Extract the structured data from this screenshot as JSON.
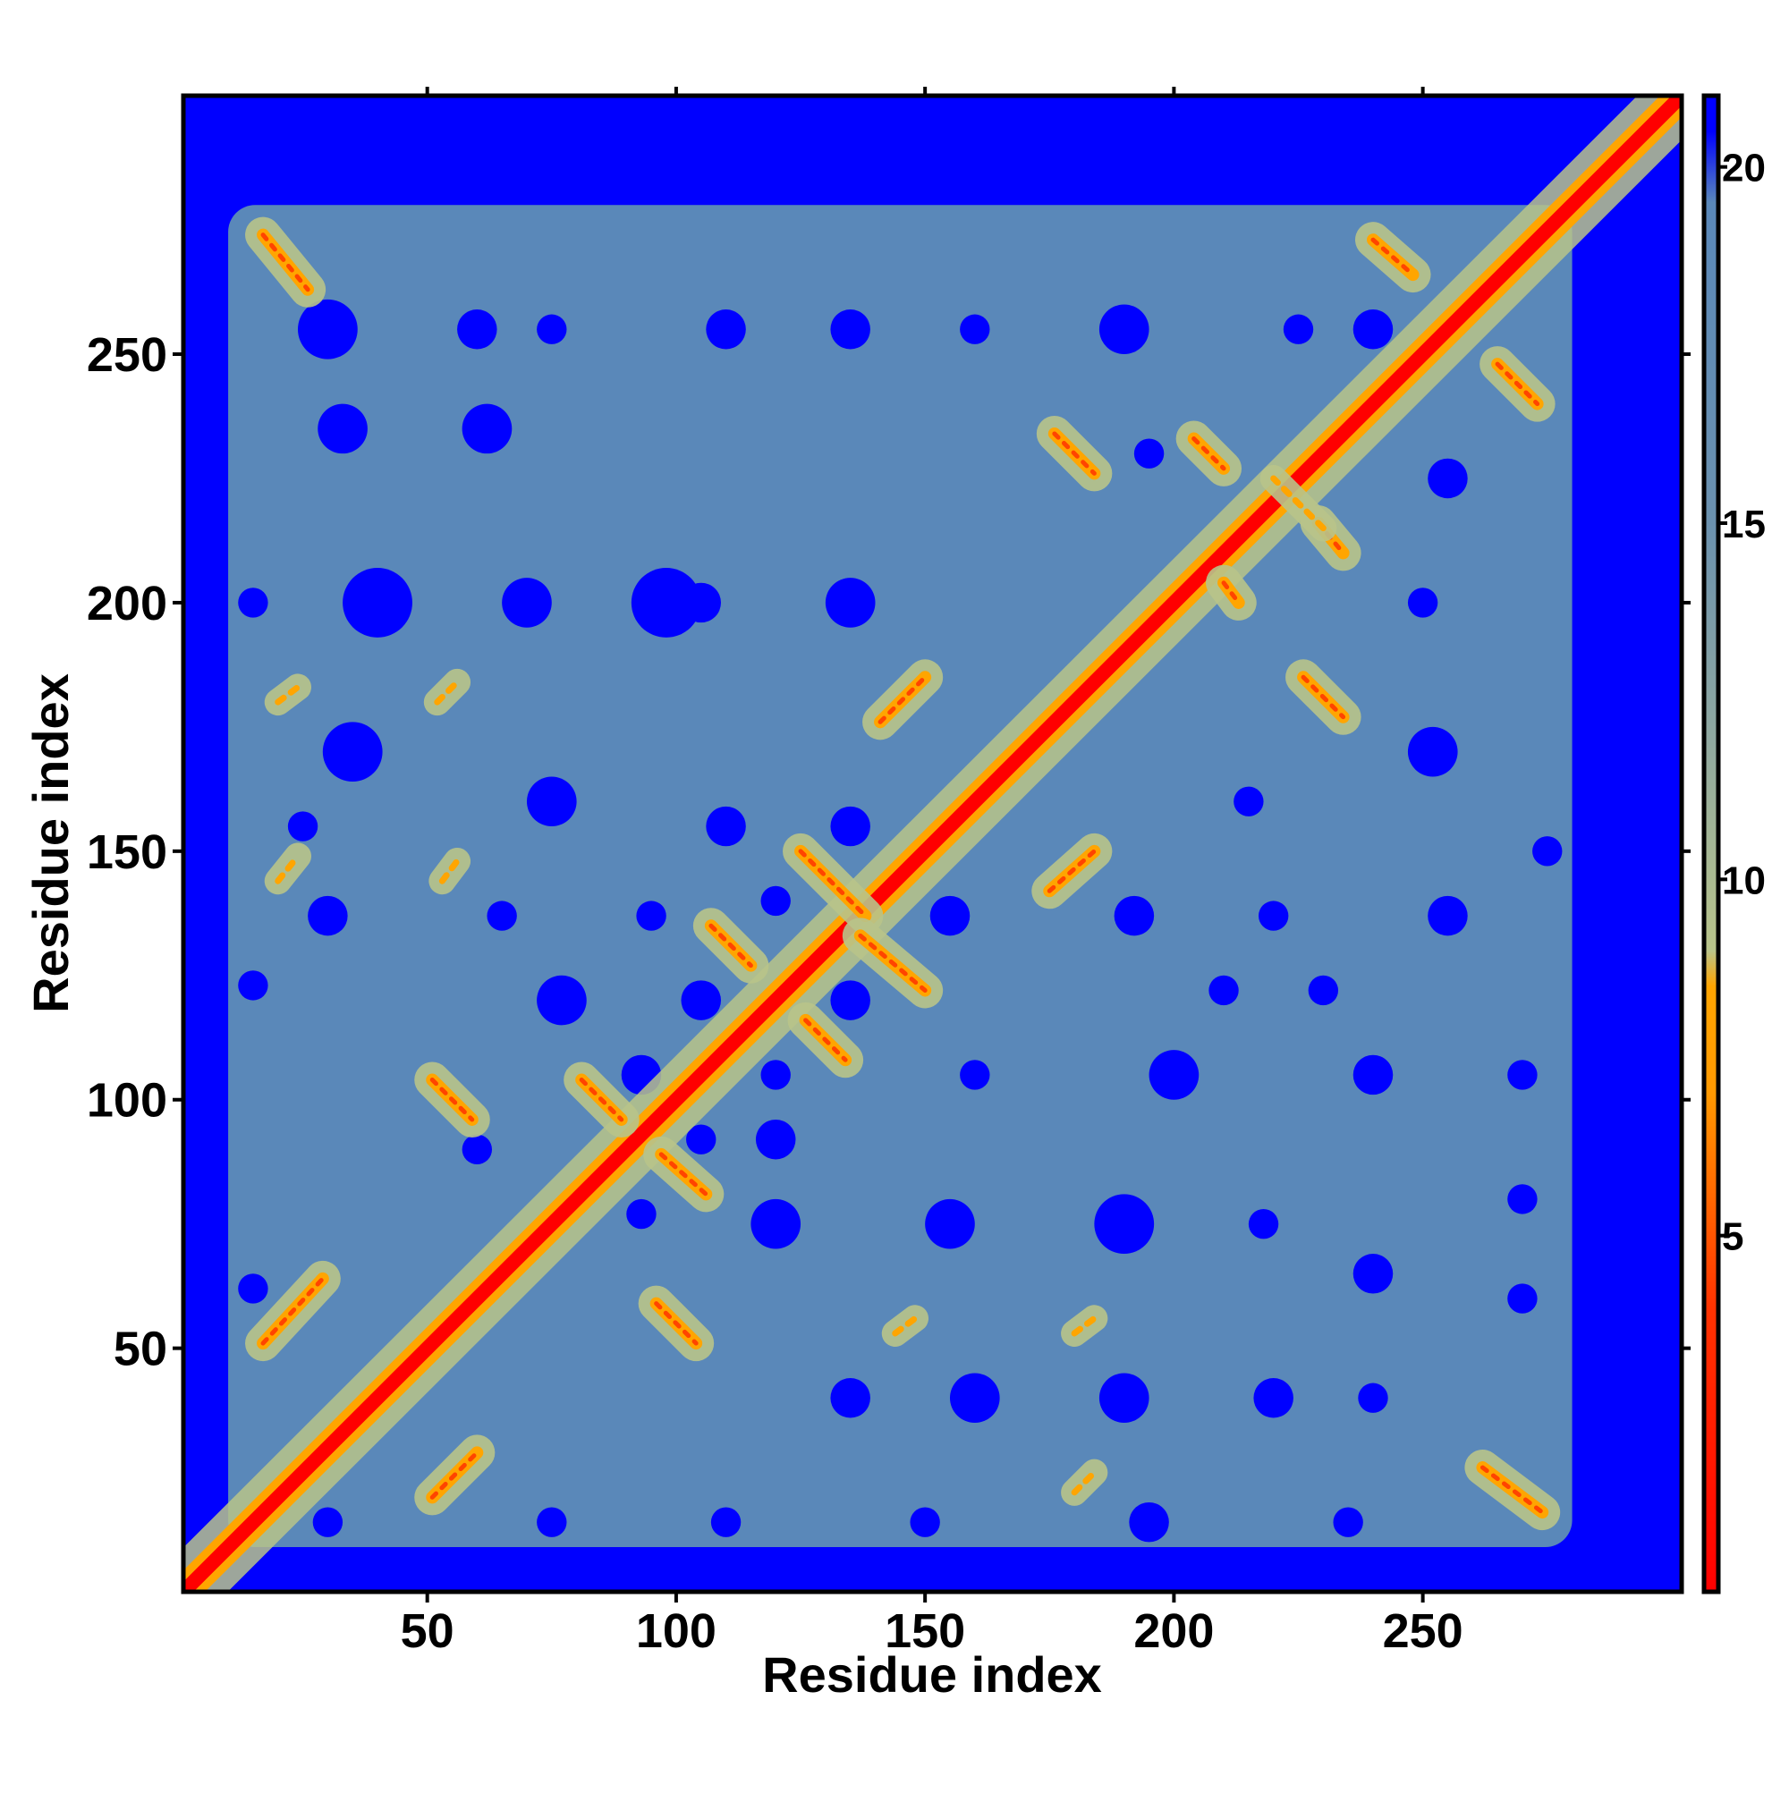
{
  "chart_data": {
    "type": "heatmap",
    "title": "",
    "xlabel": "Residue index",
    "ylabel": "Residue index",
    "xlim": [
      1,
      302
    ],
    "ylim": [
      1,
      302
    ],
    "x_ticks": [
      50,
      100,
      150,
      200,
      250
    ],
    "y_ticks": [
      50,
      100,
      150,
      200,
      250
    ],
    "colorbar": {
      "ticks": [
        5,
        10,
        15,
        20
      ],
      "range": [
        0,
        21
      ],
      "threshold_above": 8.5,
      "stops": [
        {
          "value": 0,
          "color": "#ff0000"
        },
        {
          "value": 4,
          "color": "#ff3300"
        },
        {
          "value": 7,
          "color": "#ff9900"
        },
        {
          "value": 8.5,
          "color": "#ffa500"
        },
        {
          "value": 9,
          "color": "#b9c48a"
        },
        {
          "value": 12,
          "color": "#8fa8a0"
        },
        {
          "value": 15,
          "color": "#6b91ae"
        },
        {
          "value": 19.5,
          "color": "#5a88b9"
        },
        {
          "value": 20.5,
          "color": "#0000ff"
        }
      ]
    },
    "colors": {
      "far": "#0000ff",
      "mid": "#5a88b9",
      "near": "#b9c48a",
      "contact": "#ffa500",
      "diagonal": "#ff0000"
    },
    "protein_extent": [
      10,
      280
    ],
    "diagonal": {
      "from": 1,
      "to": 302
    },
    "contact_segments": [
      {
        "x1": 17,
        "y1": 51,
        "x2": 29,
        "y2": 64,
        "kind": "parallel"
      },
      {
        "x1": 51,
        "y1": 20,
        "x2": 60,
        "y2": 29,
        "kind": "parallel"
      },
      {
        "x1": 51,
        "y1": 104,
        "x2": 59,
        "y2": 96,
        "kind": "antiparallel"
      },
      {
        "x1": 81,
        "y1": 104,
        "x2": 89,
        "y2": 96,
        "kind": "antiparallel"
      },
      {
        "x1": 96,
        "y1": 59,
        "x2": 104,
        "y2": 51,
        "kind": "antiparallel"
      },
      {
        "x1": 97,
        "y1": 89,
        "x2": 106,
        "y2": 81,
        "kind": "antiparallel"
      },
      {
        "x1": 107,
        "y1": 135,
        "x2": 115,
        "y2": 127,
        "kind": "antiparallel"
      },
      {
        "x1": 125,
        "y1": 150,
        "x2": 138,
        "y2": 137,
        "kind": "antiparallel"
      },
      {
        "x1": 126,
        "y1": 116,
        "x2": 134,
        "y2": 108,
        "kind": "antiparallel"
      },
      {
        "x1": 137,
        "y1": 133,
        "x2": 150,
        "y2": 122,
        "kind": "antiparallel"
      },
      {
        "x1": 141,
        "y1": 176,
        "x2": 150,
        "y2": 185,
        "kind": "parallel"
      },
      {
        "x1": 175,
        "y1": 142,
        "x2": 184,
        "y2": 150,
        "kind": "parallel"
      },
      {
        "x1": 176,
        "y1": 234,
        "x2": 184,
        "y2": 226,
        "kind": "antiparallel"
      },
      {
        "x1": 226,
        "y1": 185,
        "x2": 234,
        "y2": 177,
        "kind": "antiparallel"
      },
      {
        "x1": 229,
        "y1": 216,
        "x2": 234,
        "y2": 210,
        "kind": "antiparallel"
      },
      {
        "x1": 240,
        "y1": 273,
        "x2": 248,
        "y2": 266,
        "kind": "antiparallel"
      },
      {
        "x1": 265,
        "y1": 248,
        "x2": 273,
        "y2": 240,
        "kind": "antiparallel"
      },
      {
        "x1": 262,
        "y1": 26,
        "x2": 274,
        "y2": 17,
        "kind": "antiparallel"
      },
      {
        "x1": 17,
        "y1": 274,
        "x2": 26,
        "y2": 263,
        "kind": "antiparallel"
      },
      {
        "x1": 204,
        "y1": 233,
        "x2": 210,
        "y2": 227,
        "kind": "antiparallel"
      },
      {
        "x1": 210,
        "y1": 204,
        "x2": 213,
        "y2": 200,
        "kind": "antiparallel"
      },
      {
        "x1": 20,
        "y1": 180,
        "x2": 24,
        "y2": 183,
        "kind": "weak"
      },
      {
        "x1": 52,
        "y1": 180,
        "x2": 56,
        "y2": 184,
        "kind": "weak"
      },
      {
        "x1": 180,
        "y1": 53,
        "x2": 184,
        "y2": 56,
        "kind": "weak"
      },
      {
        "x1": 180,
        "y1": 21,
        "x2": 184,
        "y2": 25,
        "kind": "weak"
      },
      {
        "x1": 144,
        "y1": 53,
        "x2": 148,
        "y2": 56,
        "kind": "weak"
      },
      {
        "x1": 53,
        "y1": 144,
        "x2": 56,
        "y2": 148,
        "kind": "weak"
      },
      {
        "x1": 20,
        "y1": 144,
        "x2": 24,
        "y2": 149,
        "kind": "weak"
      },
      {
        "x1": 230,
        "y1": 215,
        "x2": 220,
        "y2": 225,
        "kind": "weak"
      }
    ],
    "voids": [
      {
        "x": 30,
        "y": 255,
        "r": 6
      },
      {
        "x": 60,
        "y": 255,
        "r": 4
      },
      {
        "x": 62,
        "y": 235,
        "r": 5
      },
      {
        "x": 33,
        "y": 235,
        "r": 5
      },
      {
        "x": 40,
        "y": 200,
        "r": 7
      },
      {
        "x": 70,
        "y": 200,
        "r": 5
      },
      {
        "x": 98,
        "y": 200,
        "r": 7
      },
      {
        "x": 135,
        "y": 200,
        "r": 5
      },
      {
        "x": 105,
        "y": 200,
        "r": 4
      },
      {
        "x": 35,
        "y": 170,
        "r": 6
      },
      {
        "x": 75,
        "y": 160,
        "r": 5
      },
      {
        "x": 30,
        "y": 137,
        "r": 4
      },
      {
        "x": 65,
        "y": 137,
        "r": 3
      },
      {
        "x": 15,
        "y": 123,
        "r": 3
      },
      {
        "x": 25,
        "y": 155,
        "r": 3
      },
      {
        "x": 110,
        "y": 155,
        "r": 4
      },
      {
        "x": 135,
        "y": 155,
        "r": 4
      },
      {
        "x": 135,
        "y": 120,
        "r": 4
      },
      {
        "x": 120,
        "y": 140,
        "r": 3
      },
      {
        "x": 95,
        "y": 137,
        "r": 3
      },
      {
        "x": 77,
        "y": 120,
        "r": 5
      },
      {
        "x": 105,
        "y": 120,
        "r": 4
      },
      {
        "x": 93,
        "y": 105,
        "r": 4
      },
      {
        "x": 120,
        "y": 105,
        "r": 3
      },
      {
        "x": 60,
        "y": 90,
        "r": 3
      },
      {
        "x": 105,
        "y": 92,
        "r": 3
      },
      {
        "x": 120,
        "y": 92,
        "r": 4
      },
      {
        "x": 93,
        "y": 77,
        "r": 3
      },
      {
        "x": 120,
        "y": 75,
        "r": 5
      },
      {
        "x": 155,
        "y": 75,
        "r": 5
      },
      {
        "x": 190,
        "y": 75,
        "r": 6
      },
      {
        "x": 218,
        "y": 75,
        "r": 3
      },
      {
        "x": 200,
        "y": 105,
        "r": 5
      },
      {
        "x": 240,
        "y": 105,
        "r": 4
      },
      {
        "x": 210,
        "y": 122,
        "r": 3
      },
      {
        "x": 192,
        "y": 137,
        "r": 4
      },
      {
        "x": 220,
        "y": 137,
        "r": 3
      },
      {
        "x": 255,
        "y": 137,
        "r": 4
      },
      {
        "x": 230,
        "y": 122,
        "r": 3
      },
      {
        "x": 155,
        "y": 137,
        "r": 4
      },
      {
        "x": 160,
        "y": 105,
        "r": 3
      },
      {
        "x": 270,
        "y": 105,
        "r": 3
      },
      {
        "x": 160,
        "y": 40,
        "r": 5
      },
      {
        "x": 190,
        "y": 40,
        "r": 5
      },
      {
        "x": 220,
        "y": 40,
        "r": 4
      },
      {
        "x": 240,
        "y": 40,
        "r": 3
      },
      {
        "x": 135,
        "y": 40,
        "r": 4
      },
      {
        "x": 240,
        "y": 65,
        "r": 4
      },
      {
        "x": 195,
        "y": 15,
        "r": 4
      },
      {
        "x": 235,
        "y": 15,
        "r": 3
      },
      {
        "x": 270,
        "y": 60,
        "r": 3
      },
      {
        "x": 270,
        "y": 80,
        "r": 3
      },
      {
        "x": 252,
        "y": 170,
        "r": 5
      },
      {
        "x": 275,
        "y": 150,
        "r": 3
      },
      {
        "x": 255,
        "y": 225,
        "r": 4
      },
      {
        "x": 240,
        "y": 255,
        "r": 4
      },
      {
        "x": 190,
        "y": 255,
        "r": 5
      },
      {
        "x": 160,
        "y": 255,
        "r": 3
      },
      {
        "x": 135,
        "y": 255,
        "r": 4
      },
      {
        "x": 110,
        "y": 255,
        "r": 4
      },
      {
        "x": 225,
        "y": 255,
        "r": 3
      },
      {
        "x": 195,
        "y": 230,
        "r": 3
      },
      {
        "x": 250,
        "y": 200,
        "r": 3
      },
      {
        "x": 215,
        "y": 160,
        "r": 3
      },
      {
        "x": 75,
        "y": 15,
        "r": 3
      },
      {
        "x": 110,
        "y": 15,
        "r": 3
      },
      {
        "x": 150,
        "y": 15,
        "r": 3
      },
      {
        "x": 30,
        "y": 15,
        "r": 3
      },
      {
        "x": 15,
        "y": 62,
        "r": 3
      },
      {
        "x": 15,
        "y": 200,
        "r": 3
      },
      {
        "x": 75,
        "y": 255,
        "r": 3
      }
    ]
  }
}
